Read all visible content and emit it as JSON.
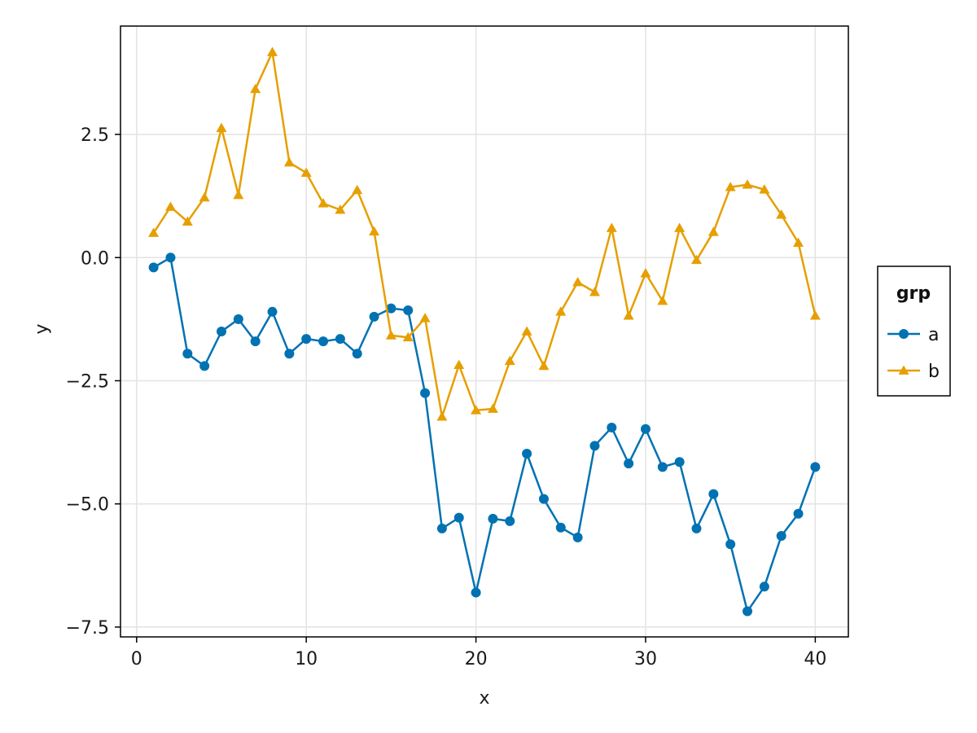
{
  "chart_data": {
    "type": "line",
    "title": "",
    "xlabel": "x",
    "ylabel": "y",
    "xlim": [
      -0.95,
      41.95
    ],
    "ylim": [
      -7.7,
      4.7
    ],
    "xticks": [
      0,
      10,
      20,
      30,
      40
    ],
    "xtick_labels": [
      "0",
      "10",
      "20",
      "30",
      "40"
    ],
    "yticks": [
      -7.5,
      -5.0,
      -2.5,
      0.0,
      2.5
    ],
    "ytick_labels": [
      "−7.5",
      "−5.0",
      "−2.5",
      "0.0",
      "2.5"
    ],
    "grid": true,
    "legend": {
      "title": "grp",
      "placement": "right"
    },
    "x": [
      1,
      2,
      3,
      4,
      5,
      6,
      7,
      8,
      9,
      10,
      11,
      12,
      13,
      14,
      15,
      16,
      17,
      18,
      19,
      20,
      21,
      22,
      23,
      24,
      25,
      26,
      27,
      28,
      29,
      30,
      31,
      32,
      33,
      34,
      35,
      36,
      37,
      38,
      39,
      40
    ],
    "series": [
      {
        "name": "a",
        "color": "#0072B2",
        "marker": "circle",
        "values": [
          -0.2,
          0.0,
          -1.95,
          -2.2,
          -1.5,
          -1.25,
          -1.7,
          -1.1,
          -1.95,
          -1.65,
          -1.7,
          -1.65,
          -1.95,
          -1.2,
          -1.03,
          -1.07,
          -2.75,
          -5.5,
          -5.28,
          -6.8,
          -5.3,
          -5.35,
          -3.98,
          -4.9,
          -5.48,
          -5.68,
          -3.82,
          -3.45,
          -4.18,
          -3.48,
          -4.25,
          -4.15,
          -5.5,
          -4.8,
          -5.82,
          -7.18,
          -6.68,
          -5.65,
          -5.2,
          -4.25
        ]
      },
      {
        "name": "b",
        "color": "#E69F00",
        "marker": "triangle",
        "values": [
          0.5,
          1.03,
          0.73,
          1.22,
          2.63,
          1.27,
          3.42,
          4.17,
          1.93,
          1.72,
          1.1,
          0.97,
          1.37,
          0.53,
          -1.58,
          -1.62,
          -1.23,
          -3.23,
          -2.18,
          -3.1,
          -3.07,
          -2.1,
          -1.5,
          -2.2,
          -1.1,
          -0.5,
          -0.7,
          0.6,
          -1.18,
          -0.32,
          -0.88,
          0.6,
          -0.05,
          0.52,
          1.43,
          1.48,
          1.38,
          0.87,
          0.3,
          -1.18
        ]
      }
    ]
  }
}
